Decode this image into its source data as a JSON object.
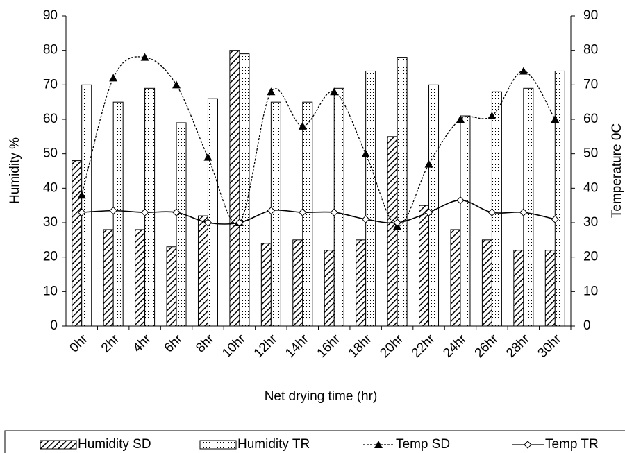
{
  "chart_data": {
    "type": "bar-line",
    "x_label": "Net drying time (hr)",
    "y_label": "Humidity %",
    "y2_label": "Temperature 0C",
    "categories": [
      "0hr",
      "2hr",
      "4hr",
      "6hr",
      "8hr",
      "10hr",
      "12hr",
      "14hr",
      "16hr",
      "18hr",
      "20hr",
      "22hr",
      "24hr",
      "26hr",
      "28hr",
      "30hr"
    ],
    "series": [
      {
        "name": "Humidity SD",
        "kind": "bar",
        "pattern": "hatch",
        "color": "#000000",
        "values": [
          48,
          28,
          28,
          23,
          32,
          80,
          24,
          25,
          22,
          25,
          55,
          35,
          28,
          25,
          22,
          22
        ]
      },
      {
        "name": "Humidity TR",
        "kind": "bar",
        "pattern": "dots",
        "color": "#000000",
        "values": [
          70,
          65,
          69,
          59,
          66,
          79,
          65,
          65,
          69,
          74,
          78,
          70,
          61,
          68,
          69,
          74
        ]
      },
      {
        "name": "Temp SD",
        "kind": "line",
        "marker": "triangle",
        "dash": true,
        "axis": "y2",
        "color": "#000000",
        "values": [
          38,
          72,
          78,
          70,
          49,
          30,
          68,
          58,
          68,
          50,
          29,
          47,
          60,
          61,
          74,
          60
        ]
      },
      {
        "name": "Temp TR",
        "kind": "line",
        "marker": "diamond",
        "dash": false,
        "axis": "y2",
        "color": "#000000",
        "values": [
          33,
          33.5,
          33,
          33,
          30,
          30,
          33.5,
          33,
          33,
          31,
          30,
          33,
          36.5,
          33,
          33,
          31
        ]
      }
    ],
    "ylim": [
      0,
      90
    ],
    "yticks": [
      0,
      10,
      20,
      30,
      40,
      50,
      60,
      70,
      80,
      90
    ],
    "y2lim": [
      0,
      90
    ],
    "y2ticks": [
      0,
      10,
      20,
      30,
      40,
      50,
      60,
      70,
      80,
      90
    ],
    "grid": false,
    "legend": "bottom"
  }
}
